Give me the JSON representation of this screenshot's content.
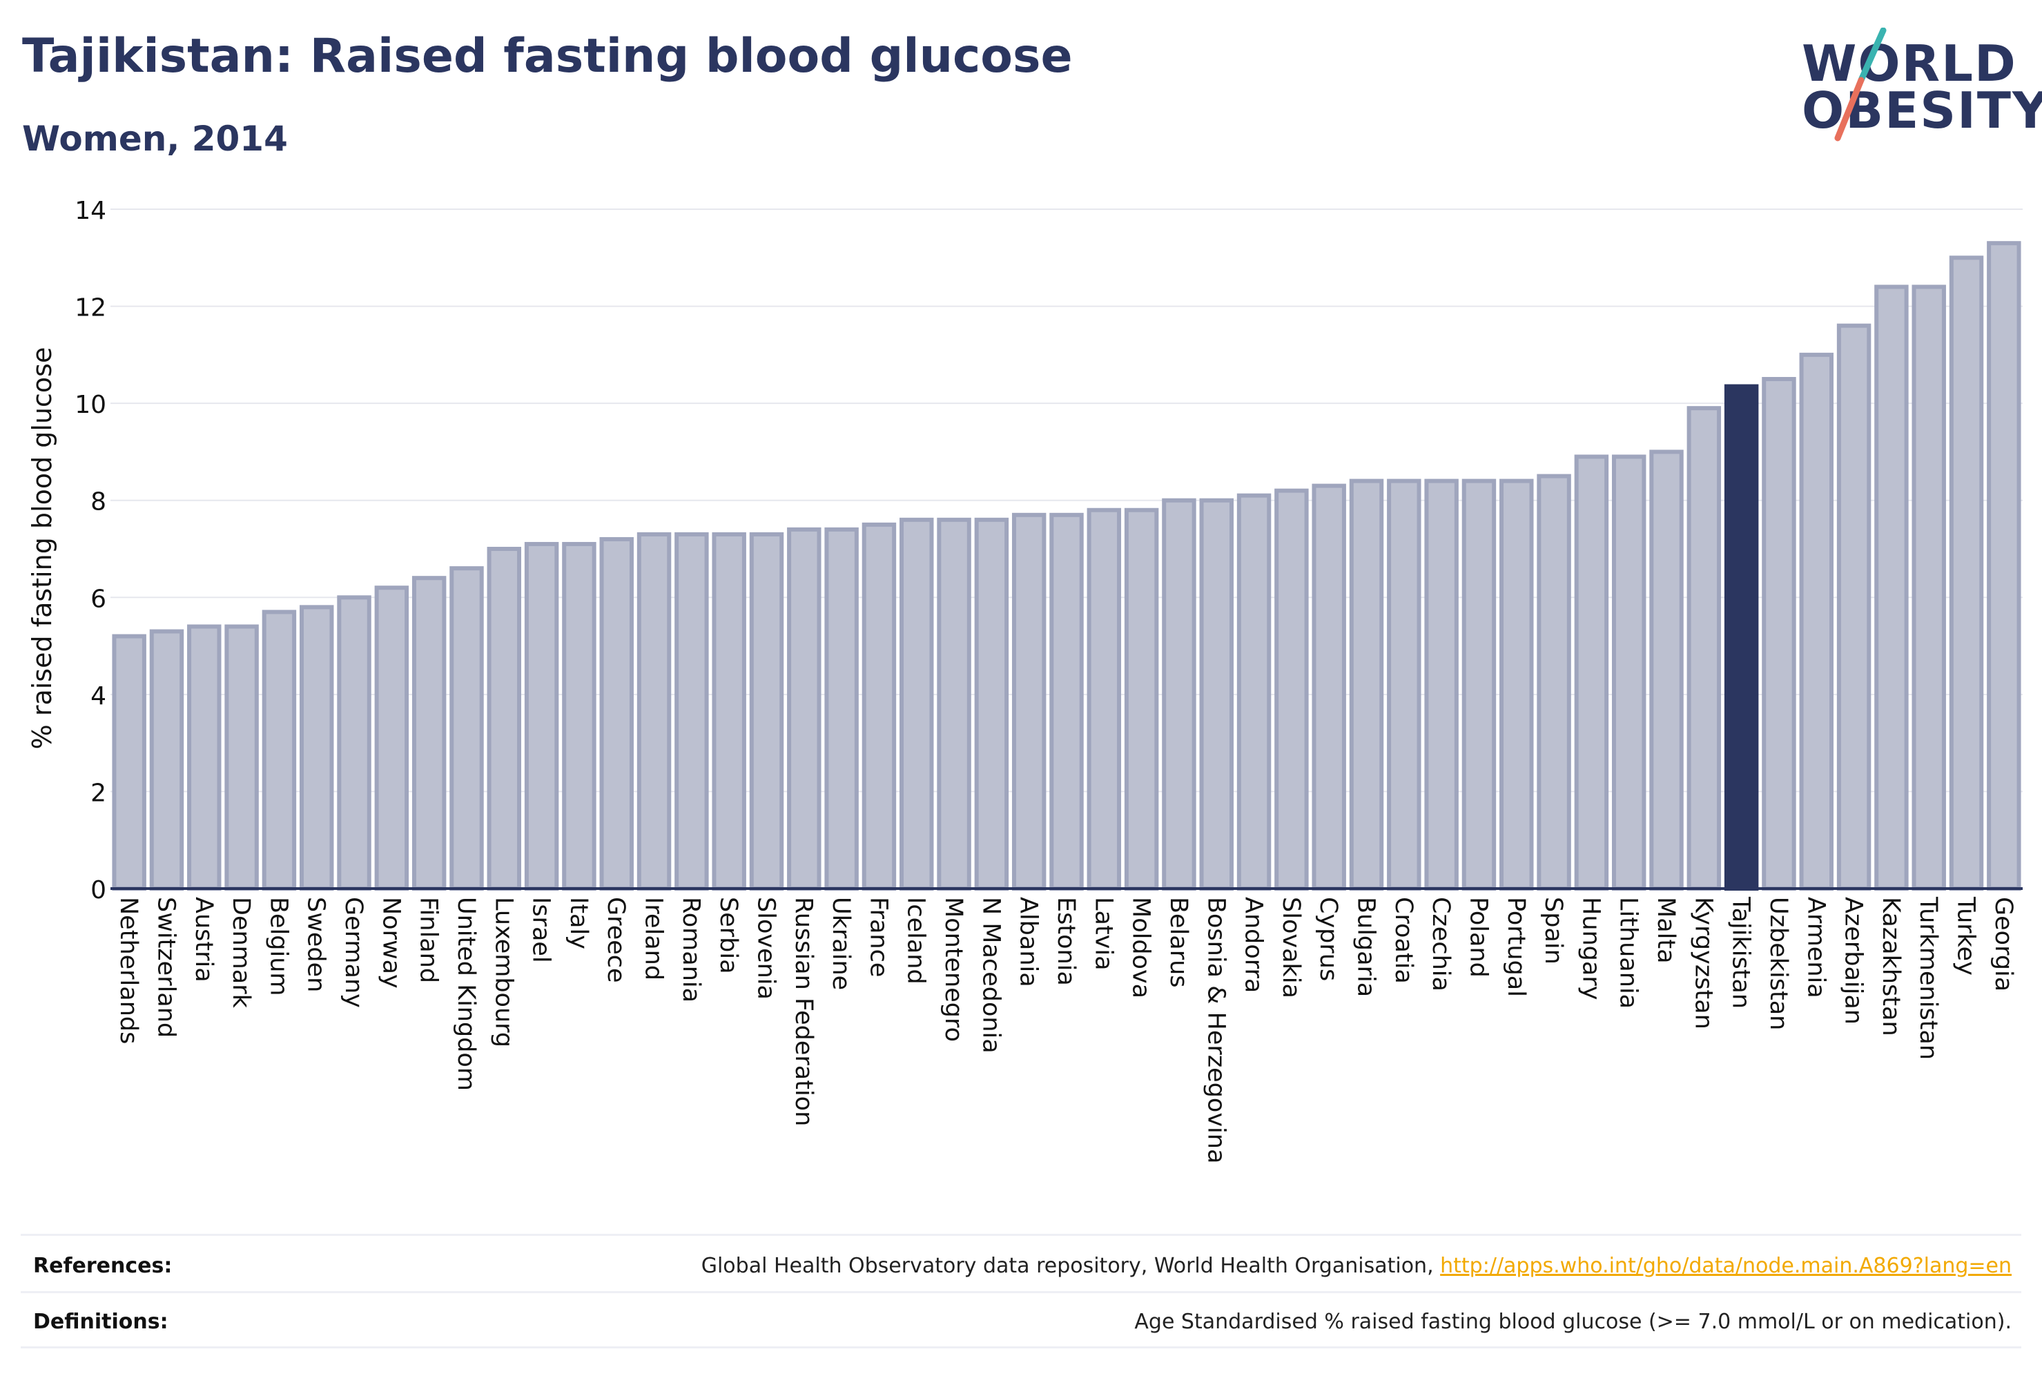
{
  "header": {
    "title": "Tajikistan: Raised fasting blood glucose",
    "subtitle": "Women, 2014"
  },
  "logo": {
    "line1": "WORLD",
    "line2": "OBESITY",
    "colors": {
      "text": "#2b3660",
      "slash_top": "#3ab3b0",
      "slash_bottom": "#e8705c"
    }
  },
  "chart_data": {
    "type": "bar",
    "title": "",
    "xlabel": "",
    "ylabel": "% raised fasting blood glucose",
    "ylim": [
      0,
      14
    ],
    "yticks": [
      0,
      2,
      4,
      6,
      8,
      10,
      12,
      14
    ],
    "grid": true,
    "highlight": "Tajikistan",
    "colors": {
      "bar": "#bcc0d0",
      "bar_edge": "#9fa5bd",
      "highlight": "#2b3660",
      "grid": "#e6e7ee",
      "axis": "#2b3660"
    },
    "categories": [
      "Netherlands",
      "Switzerland",
      "Austria",
      "Denmark",
      "Belgium",
      "Sweden",
      "Germany",
      "Norway",
      "Finland",
      "United Kingdom",
      "Luxembourg",
      "Israel",
      "Italy",
      "Greece",
      "Ireland",
      "Romania",
      "Serbia",
      "Slovenia",
      "Russian Federation",
      "Ukraine",
      "France",
      "Iceland",
      "Montenegro",
      "N Macedonia",
      "Albania",
      "Estonia",
      "Latvia",
      "Moldova",
      "Belarus",
      "Bosnia & Herzegovina",
      "Andorra",
      "Slovakia",
      "Cyprus",
      "Bulgaria",
      "Croatia",
      "Czechia",
      "Poland",
      "Portugal",
      "Spain",
      "Hungary",
      "Lithuania",
      "Malta",
      "Kyrgyzstan",
      "Tajikistan",
      "Uzbekistan",
      "Armenia",
      "Azerbaijan",
      "Kazakhstan",
      "Turkmenistan",
      "Turkey",
      "Georgia"
    ],
    "values": [
      5.2,
      5.3,
      5.4,
      5.4,
      5.7,
      5.8,
      6.0,
      6.2,
      6.4,
      6.6,
      7.0,
      7.1,
      7.1,
      7.2,
      7.3,
      7.3,
      7.3,
      7.3,
      7.4,
      7.4,
      7.5,
      7.6,
      7.6,
      7.6,
      7.7,
      7.7,
      7.8,
      7.8,
      8.0,
      8.0,
      8.1,
      8.2,
      8.3,
      8.4,
      8.4,
      8.4,
      8.4,
      8.4,
      8.5,
      8.9,
      8.9,
      9.0,
      9.9,
      10.35,
      10.5,
      11.0,
      11.6,
      12.4,
      12.4,
      13.0,
      13.3
    ]
  },
  "footer": {
    "references_label": "References:",
    "references_text": "Global Health Observatory data repository, World Health Organisation, ",
    "references_link": "http://apps.who.int/gho/data/node.main.A869?lang=en",
    "definitions_label": "Definitions:",
    "definitions_text": "Age Standardised % raised fasting blood glucose (>= 7.0 mmol/L or on medication)."
  }
}
